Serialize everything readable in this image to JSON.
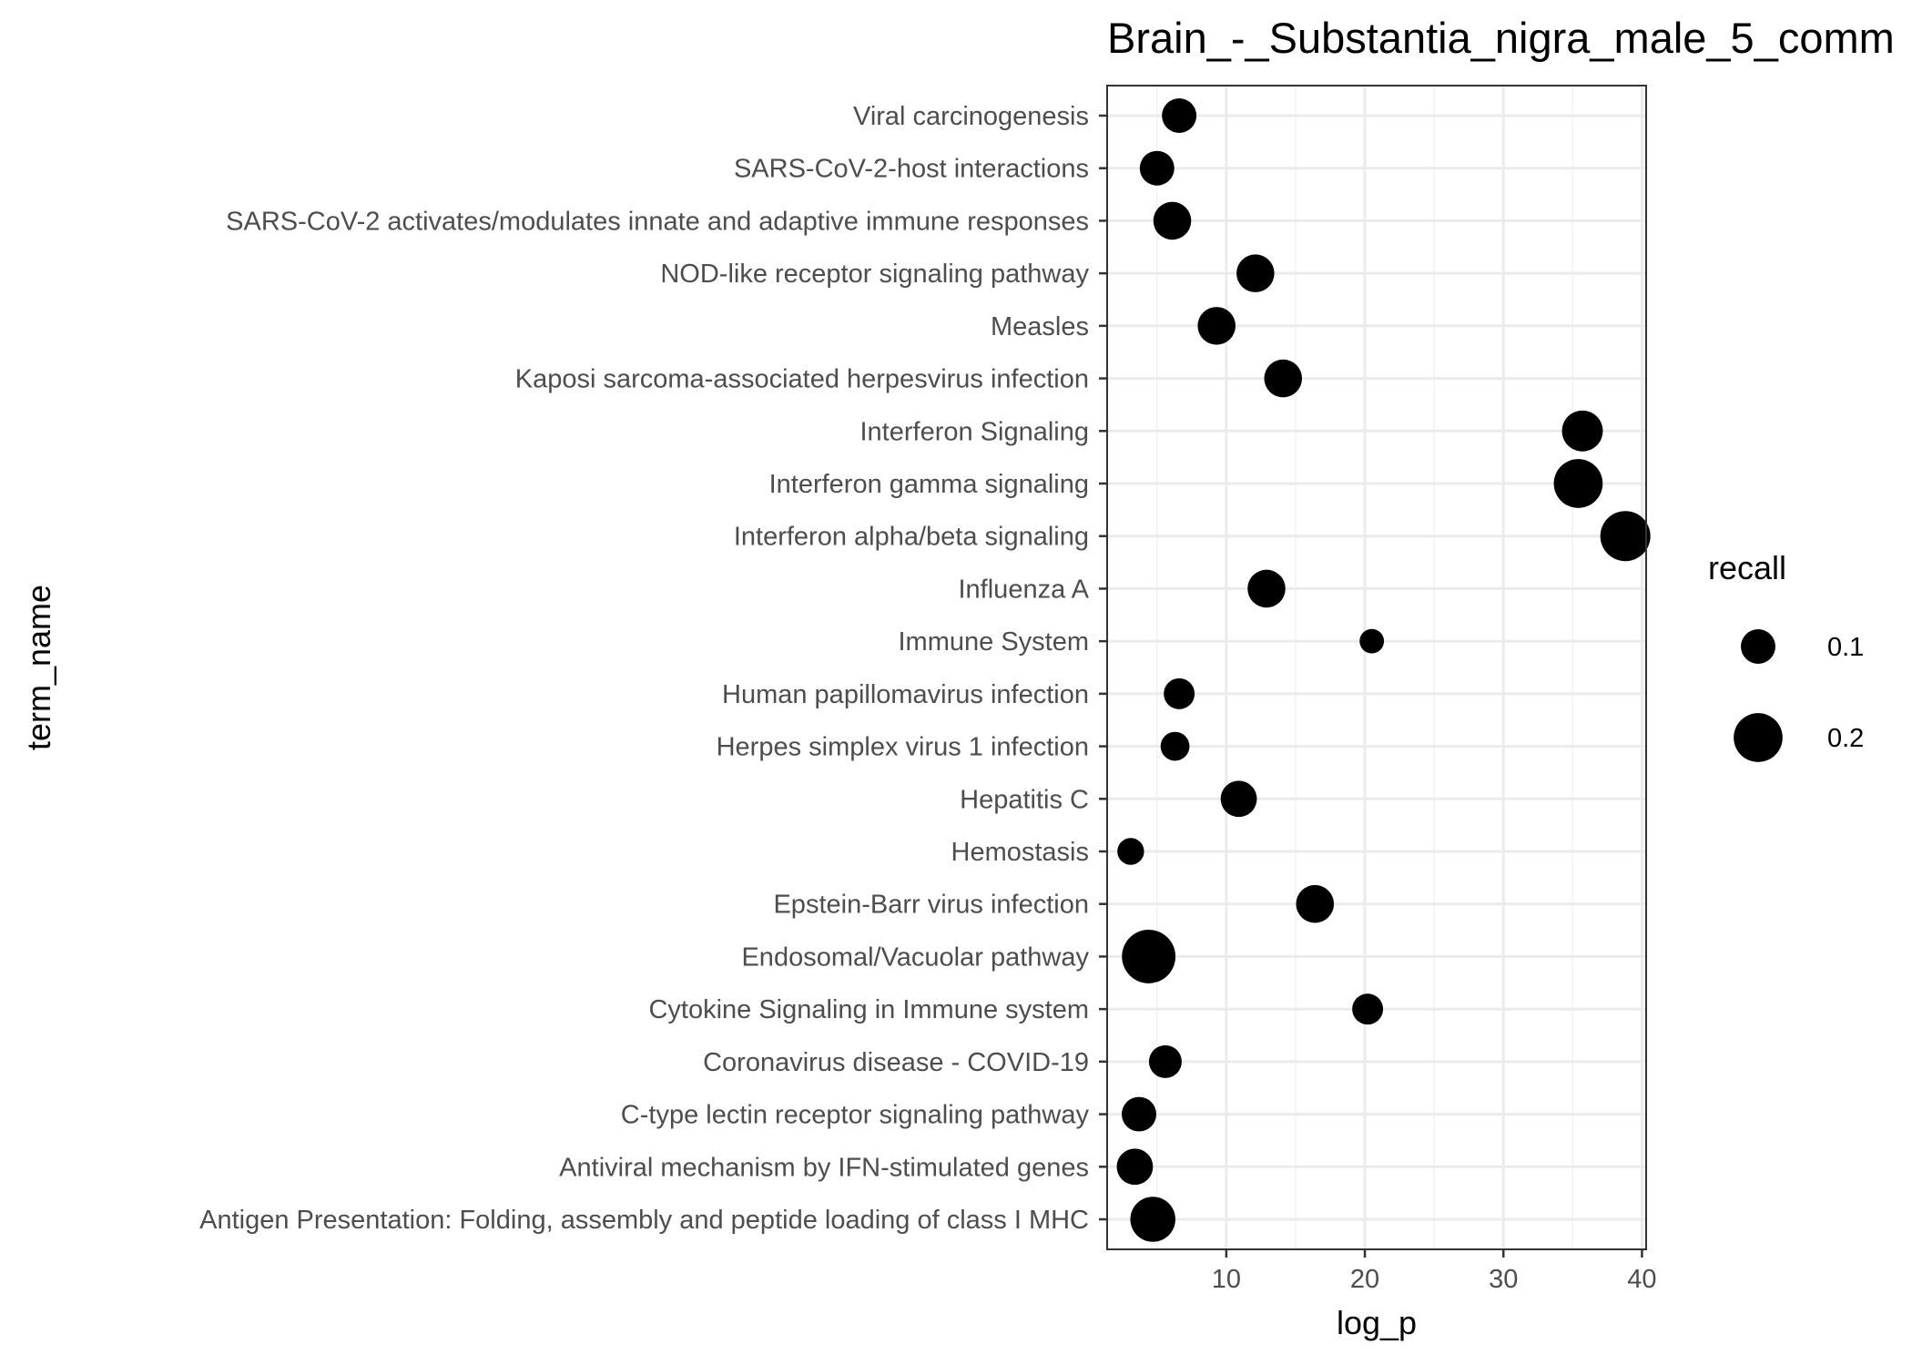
{
  "chart_data": {
    "type": "scatter",
    "title": "Brain_-_Substantia_nigra_male_5_comm",
    "xlabel": "log_p",
    "ylabel": "term_name",
    "xlim": [
      1.4,
      40.3
    ],
    "x_ticks": [
      10,
      20,
      30,
      40
    ],
    "grid": true,
    "legend": {
      "title": "recall",
      "placement": "right",
      "entries": [
        {
          "label": "0.1",
          "value": 0.1
        },
        {
          "label": "0.2",
          "value": 0.2
        }
      ]
    },
    "marker_color": "#000000",
    "points": [
      {
        "term": "Viral carcinogenesis",
        "log_p": 6.6,
        "recall": 0.1
      },
      {
        "term": "SARS-CoV-2-host interactions",
        "log_p": 5.0,
        "recall": 0.1
      },
      {
        "term": "SARS-CoV-2 activates/modulates innate and adaptive immune responses",
        "log_p": 6.1,
        "recall": 0.12
      },
      {
        "term": "NOD-like receptor signaling pathway",
        "log_p": 12.1,
        "recall": 0.12
      },
      {
        "term": "Measles",
        "log_p": 9.3,
        "recall": 0.12
      },
      {
        "term": "Kaposi sarcoma-associated herpesvirus infection",
        "log_p": 14.1,
        "recall": 0.12
      },
      {
        "term": "Interferon Signaling",
        "log_p": 35.7,
        "recall": 0.14
      },
      {
        "term": "Interferon gamma signaling",
        "log_p": 35.4,
        "recall": 0.2
      },
      {
        "term": "Interferon alpha/beta signaling",
        "log_p": 38.8,
        "recall": 0.21
      },
      {
        "term": "Influenza A",
        "log_p": 12.9,
        "recall": 0.12
      },
      {
        "term": "Immune System",
        "log_p": 20.5,
        "recall": 0.05
      },
      {
        "term": "Human papillomavirus infection",
        "log_p": 6.6,
        "recall": 0.08
      },
      {
        "term": "Herpes simplex virus 1 infection",
        "log_p": 6.3,
        "recall": 0.07
      },
      {
        "term": "Hepatitis C",
        "log_p": 10.9,
        "recall": 0.11
      },
      {
        "term": "Hemostasis",
        "log_p": 3.1,
        "recall": 0.06
      },
      {
        "term": "Epstein-Barr virus infection",
        "log_p": 16.4,
        "recall": 0.12
      },
      {
        "term": "Endosomal/Vacuolar pathway",
        "log_p": 4.4,
        "recall": 0.24
      },
      {
        "term": "Cytokine Signaling in Immune system",
        "log_p": 20.2,
        "recall": 0.08
      },
      {
        "term": "Coronavirus disease - COVID-19",
        "log_p": 5.6,
        "recall": 0.09
      },
      {
        "term": "C-type lectin receptor signaling pathway",
        "log_p": 3.7,
        "recall": 0.1
      },
      {
        "term": "Antiviral mechanism by IFN-stimulated genes",
        "log_p": 3.4,
        "recall": 0.11
      },
      {
        "term": "Antigen Presentation: Folding, assembly and peptide loading of class I MHC",
        "log_p": 4.7,
        "recall": 0.17
      }
    ]
  }
}
